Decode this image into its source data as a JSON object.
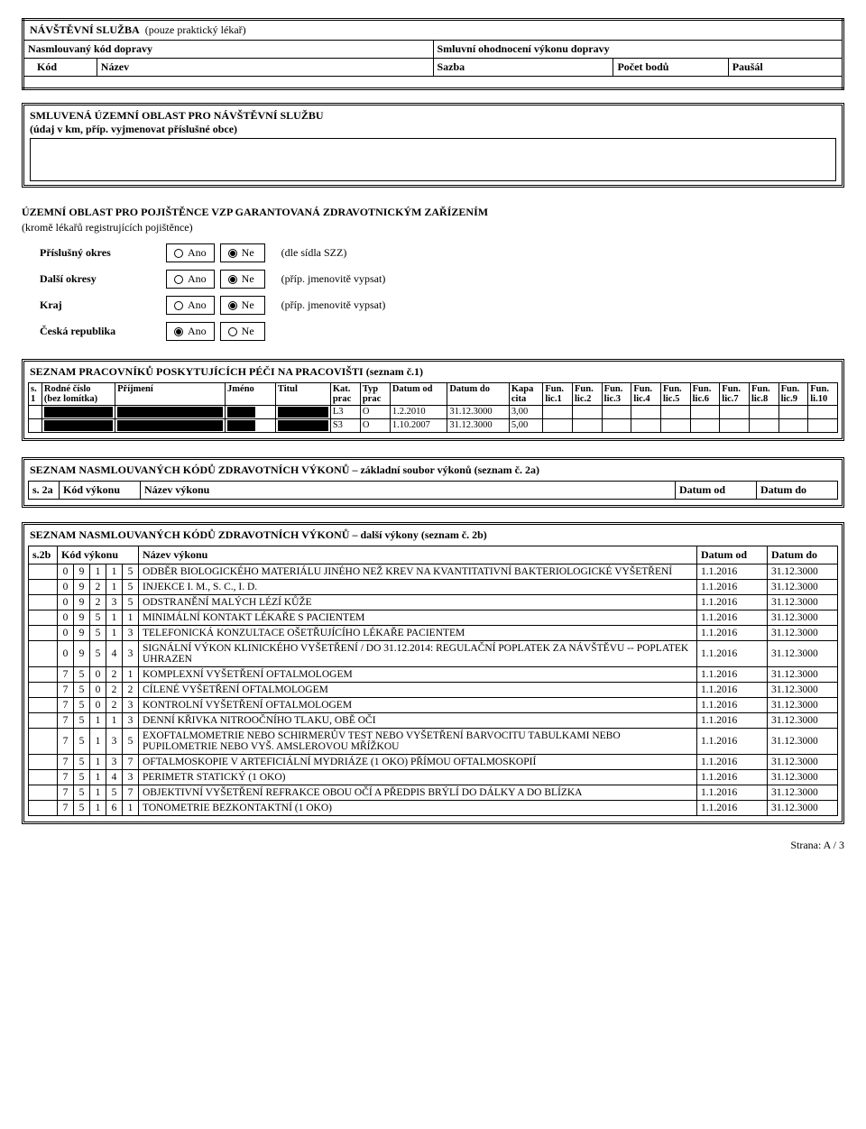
{
  "sec1": {
    "title": "NÁVŠTĚVNÍ SLUŽBA",
    "title_note": "(pouze praktický lékař)",
    "row2_left": "Nasmlouvaný kód dopravy",
    "row2_right": "Smluvní ohodnocení výkonu dopravy",
    "hdr_kod": "Kód",
    "hdr_nazev": "Název",
    "hdr_sazba": "Sazba",
    "hdr_body": "Počet bodů",
    "hdr_pausal": "Paušál"
  },
  "sec2": {
    "title": "SMLUVENÁ ÚZEMNÍ OBLAST PRO NÁVŠTĚVNÍ SLUŽBU",
    "sub": "(údaj v km, příp. vyjmenovat příslušné obce)"
  },
  "sec3": {
    "title": "ÚZEMNÍ OBLAST PRO POJIŠTĚNCE VZP GARANTOVANÁ ZDRAVOTNICKÝM ZAŘÍZENÍM",
    "sub": "(kromě lékařů registrujících pojištěnce)",
    "ano": "Ano",
    "ne": "Ne",
    "rows": [
      {
        "label": "Příslušný okres",
        "note": "(dle sídla SZZ)",
        "sel": "ne"
      },
      {
        "label": "Další okresy",
        "note": "(příp. jmenovitě vypsat)",
        "sel": "ne"
      },
      {
        "label": "Kraj",
        "note": "(příp. jmenovitě vypsat)",
        "sel": "ne"
      },
      {
        "label": "Česká republika",
        "note": "",
        "sel": "ano"
      }
    ]
  },
  "sec4": {
    "title": "SEZNAM PRACOVNÍKŮ POSKYTUJÍCÍCH PÉČI NA PRACOVIŠTI (seznam č.1)",
    "headers": [
      "s.\n1",
      "Rodné číslo\n(bez lomítka)",
      "Příjmení",
      "Jméno",
      "Titul",
      "Kat.\nprac",
      "Typ\nprac",
      "Datum od",
      "Datum do",
      "Kapa\ncita",
      "Fun.\nlic.1",
      "Fun.\nlic.2",
      "Fun.\nlic.3",
      "Fun.\nlic.4",
      "Fun.\nlic.5",
      "Fun.\nlic.6",
      "Fun.\nlic.7",
      "Fun.\nlic.8",
      "Fun.\nlic.9",
      "Fun.\nli.10"
    ],
    "rows": [
      {
        "kat": "L3",
        "typ": "O",
        "od": "1.2.2010",
        "do": "31.12.3000",
        "kapa": "3,00"
      },
      {
        "kat": "S3",
        "typ": "O",
        "od": "1.10.2007",
        "do": "31.12.3000",
        "kapa": "5,00"
      }
    ]
  },
  "sec5": {
    "title": "SEZNAM NASMLOUVANÝCH KÓDŮ ZDRAVOTNÍCH VÝKONŮ – základní soubor výkonů (seznam č. 2a)",
    "hdr_s": "s. 2a",
    "hdr_kod": "Kód výkonu",
    "hdr_nazev": "Název výkonu",
    "hdr_od": "Datum od",
    "hdr_do": "Datum do"
  },
  "sec6": {
    "title": "SEZNAM NASMLOUVANÝCH KÓDŮ ZDRAVOTNÍCH VÝKONŮ – další výkony (seznam č. 2b)",
    "hdr_s": "s.2b",
    "hdr_kod": "Kód výkonu",
    "hdr_nazev": "Název výkonu",
    "hdr_od": "Datum od",
    "hdr_do": "Datum do",
    "rows": [
      {
        "d": [
          "0",
          "9",
          "1",
          "1",
          "5"
        ],
        "name": "ODBĚR BIOLOGICKÉHO MATERIÁLU JINÉHO NEŽ KREV NA KVANTITATIVNÍ BAKTERIOLOGICKÉ VYŠETŘENÍ",
        "od": "1.1.2016",
        "do": "31.12.3000"
      },
      {
        "d": [
          "0",
          "9",
          "2",
          "1",
          "5"
        ],
        "name": "INJEKCE I. M., S. C., I. D.",
        "od": "1.1.2016",
        "do": "31.12.3000"
      },
      {
        "d": [
          "0",
          "9",
          "2",
          "3",
          "5"
        ],
        "name": "ODSTRANĚNÍ MALÝCH LÉZÍ KŮŽE",
        "od": "1.1.2016",
        "do": "31.12.3000"
      },
      {
        "d": [
          "0",
          "9",
          "5",
          "1",
          "1"
        ],
        "name": "MINIMÁLNÍ KONTAKT LÉKAŘE S PACIENTEM",
        "od": "1.1.2016",
        "do": "31.12.3000"
      },
      {
        "d": [
          "0",
          "9",
          "5",
          "1",
          "3"
        ],
        "name": "TELEFONICKÁ KONZULTACE OŠETŘUJÍCÍHO LÉKAŘE PACIENTEM",
        "od": "1.1.2016",
        "do": "31.12.3000"
      },
      {
        "d": [
          "0",
          "9",
          "5",
          "4",
          "3"
        ],
        "name": "SIGNÁLNÍ VÝKON KLINICKÉHO VYŠETŘENÍ / DO 31.12.2014: REGULAČNÍ POPLATEK ZA NÁVŠTĚVU -- POPLATEK UHRAZEN",
        "od": "1.1.2016",
        "do": "31.12.3000"
      },
      {
        "d": [
          "7",
          "5",
          "0",
          "2",
          "1"
        ],
        "name": "KOMPLEXNÍ VYŠETŘENÍ OFTALMOLOGEM",
        "od": "1.1.2016",
        "do": "31.12.3000"
      },
      {
        "d": [
          "7",
          "5",
          "0",
          "2",
          "2"
        ],
        "name": "CÍLENÉ VYŠETŘENÍ OFTALMOLOGEM",
        "od": "1.1.2016",
        "do": "31.12.3000"
      },
      {
        "d": [
          "7",
          "5",
          "0",
          "2",
          "3"
        ],
        "name": "KONTROLNÍ VYŠETŘENÍ OFTALMOLOGEM",
        "od": "1.1.2016",
        "do": "31.12.3000"
      },
      {
        "d": [
          "7",
          "5",
          "1",
          "1",
          "3"
        ],
        "name": "DENNÍ KŘIVKA NITROOČNÍHO TLAKU, OBĚ OČI",
        "od": "1.1.2016",
        "do": "31.12.3000"
      },
      {
        "d": [
          "7",
          "5",
          "1",
          "3",
          "5"
        ],
        "name": "EXOFTALMOMETRIE NEBO SCHIRMERŮV TEST NEBO VYŠETŘENÍ BARVOCITU TABULKAMI NEBO PUPILOMETRIE NEBO VYŠ. AMSLEROVOU MŘÍŽKOU",
        "od": "1.1.2016",
        "do": "31.12.3000"
      },
      {
        "d": [
          "7",
          "5",
          "1",
          "3",
          "7"
        ],
        "name": "OFTALMOSKOPIE V ARTEFICIÁLNÍ MYDRIÁZE (1 OKO) PŘÍMOU OFTALMOSKOPIÍ",
        "od": "1.1.2016",
        "do": "31.12.3000"
      },
      {
        "d": [
          "7",
          "5",
          "1",
          "4",
          "3"
        ],
        "name": "PERIMETR STATICKÝ (1 OKO)",
        "od": "1.1.2016",
        "do": "31.12.3000"
      },
      {
        "d": [
          "7",
          "5",
          "1",
          "5",
          "7"
        ],
        "name": "OBJEKTIVNÍ VYŠETŘENÍ REFRAKCE OBOU OČÍ A PŘEDPIS BRÝLÍ DO DÁLKY A DO BLÍZKA",
        "od": "1.1.2016",
        "do": "31.12.3000"
      },
      {
        "d": [
          "7",
          "5",
          "1",
          "6",
          "1"
        ],
        "name": "TONOMETRIE BEZKONTAKTNÍ (1 OKO)",
        "od": "1.1.2016",
        "do": "31.12.3000"
      }
    ]
  },
  "footer": "Strana: A / 3"
}
